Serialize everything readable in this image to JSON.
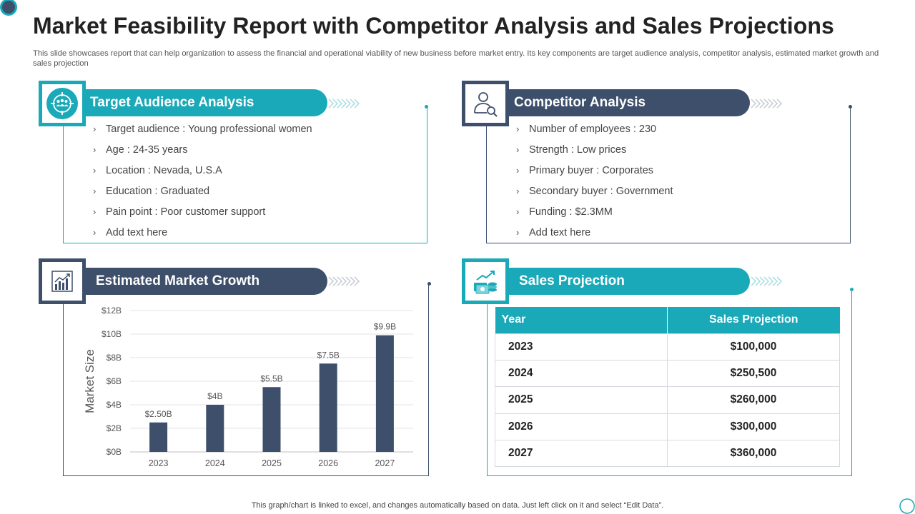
{
  "header": {
    "title": "Market Feasibility Report with Competitor Analysis and Sales Projections",
    "subtitle": "This slide showcases report that can help organization to assess the financial and operational viability of new business before market entry. Its key components are target audience analysis, competitor analysis, estimated market growth and sales projection"
  },
  "colors": {
    "teal": "#1aa9b8",
    "navy": "#3d4f6b"
  },
  "target_audience": {
    "title": "Target Audience Analysis",
    "icon": "target-audience-icon",
    "items": [
      "Target audience : Young professional women",
      "Age : 24-35 years",
      "Location : Nevada, U.S.A",
      "Education : Graduated",
      "Pain point : Poor customer support",
      "Add text here"
    ]
  },
  "competitor": {
    "title": "Competitor Analysis",
    "icon": "competitor-search-icon",
    "items": [
      "Number of employees : 230",
      "Strength : Low prices",
      "Primary buyer : Corporates",
      "Secondary buyer : Government",
      "Funding : $2.3MM",
      "Add text here"
    ]
  },
  "market_growth": {
    "title": "Estimated Market Growth",
    "icon": "growth-chart-icon"
  },
  "chart_data": {
    "type": "bar",
    "title": "Estimated Market Growth",
    "xlabel": "",
    "ylabel": "Market Size",
    "categories": [
      "2023",
      "2024",
      "2025",
      "2026",
      "2027"
    ],
    "values": [
      2.5,
      4,
      5.5,
      7.5,
      9.9
    ],
    "data_labels": [
      "$2.50B",
      "$4B",
      "$5.5B",
      "$7.5B",
      "$9.9B"
    ],
    "ylim": [
      0,
      12
    ],
    "yticks": [
      0,
      2,
      4,
      6,
      8,
      10,
      12
    ],
    "ytick_labels": [
      "$0B",
      "$2B",
      "$4B",
      "$6B",
      "$8B",
      "$10B",
      "$12B"
    ],
    "grid": true,
    "color": "#3d4f6b"
  },
  "sales_projection": {
    "title": "Sales Projection",
    "icon": "money-growth-icon",
    "columns": [
      "Year",
      "Sales Projection"
    ],
    "rows": [
      [
        "2023",
        "$100,000"
      ],
      [
        "2024",
        "$250,500"
      ],
      [
        "2025",
        "$260,000"
      ],
      [
        "2026",
        "$300,000"
      ],
      [
        "2027",
        "$360,000"
      ]
    ]
  },
  "footnote": "This graph/chart is linked to excel,  and changes automatically based on data. Just left click on it and select “Edit Data”."
}
